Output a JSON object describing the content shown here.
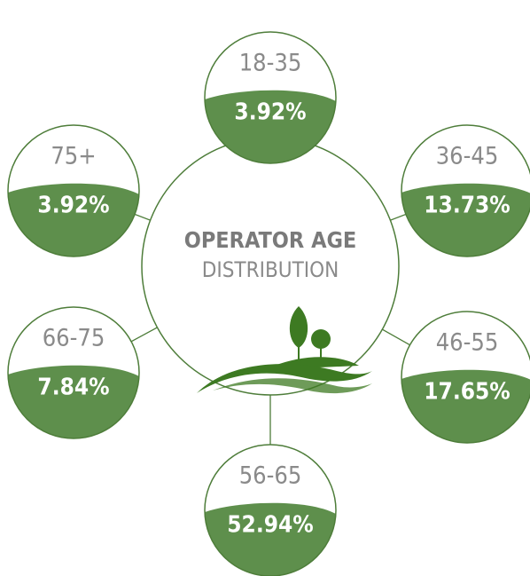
{
  "title": {
    "line1": "OPERATOR AGE",
    "line2": "DISTRIBUTION"
  },
  "nodes": [
    {
      "label": "18-35",
      "value": "3.92%"
    },
    {
      "label": "36-45",
      "value": "13.73%"
    },
    {
      "label": "46-55",
      "value": "17.65%"
    },
    {
      "label": "56-65",
      "value": "52.94%"
    },
    {
      "label": "66-75",
      "value": "7.84%"
    },
    {
      "label": "75+",
      "value": "3.92%"
    }
  ]
}
